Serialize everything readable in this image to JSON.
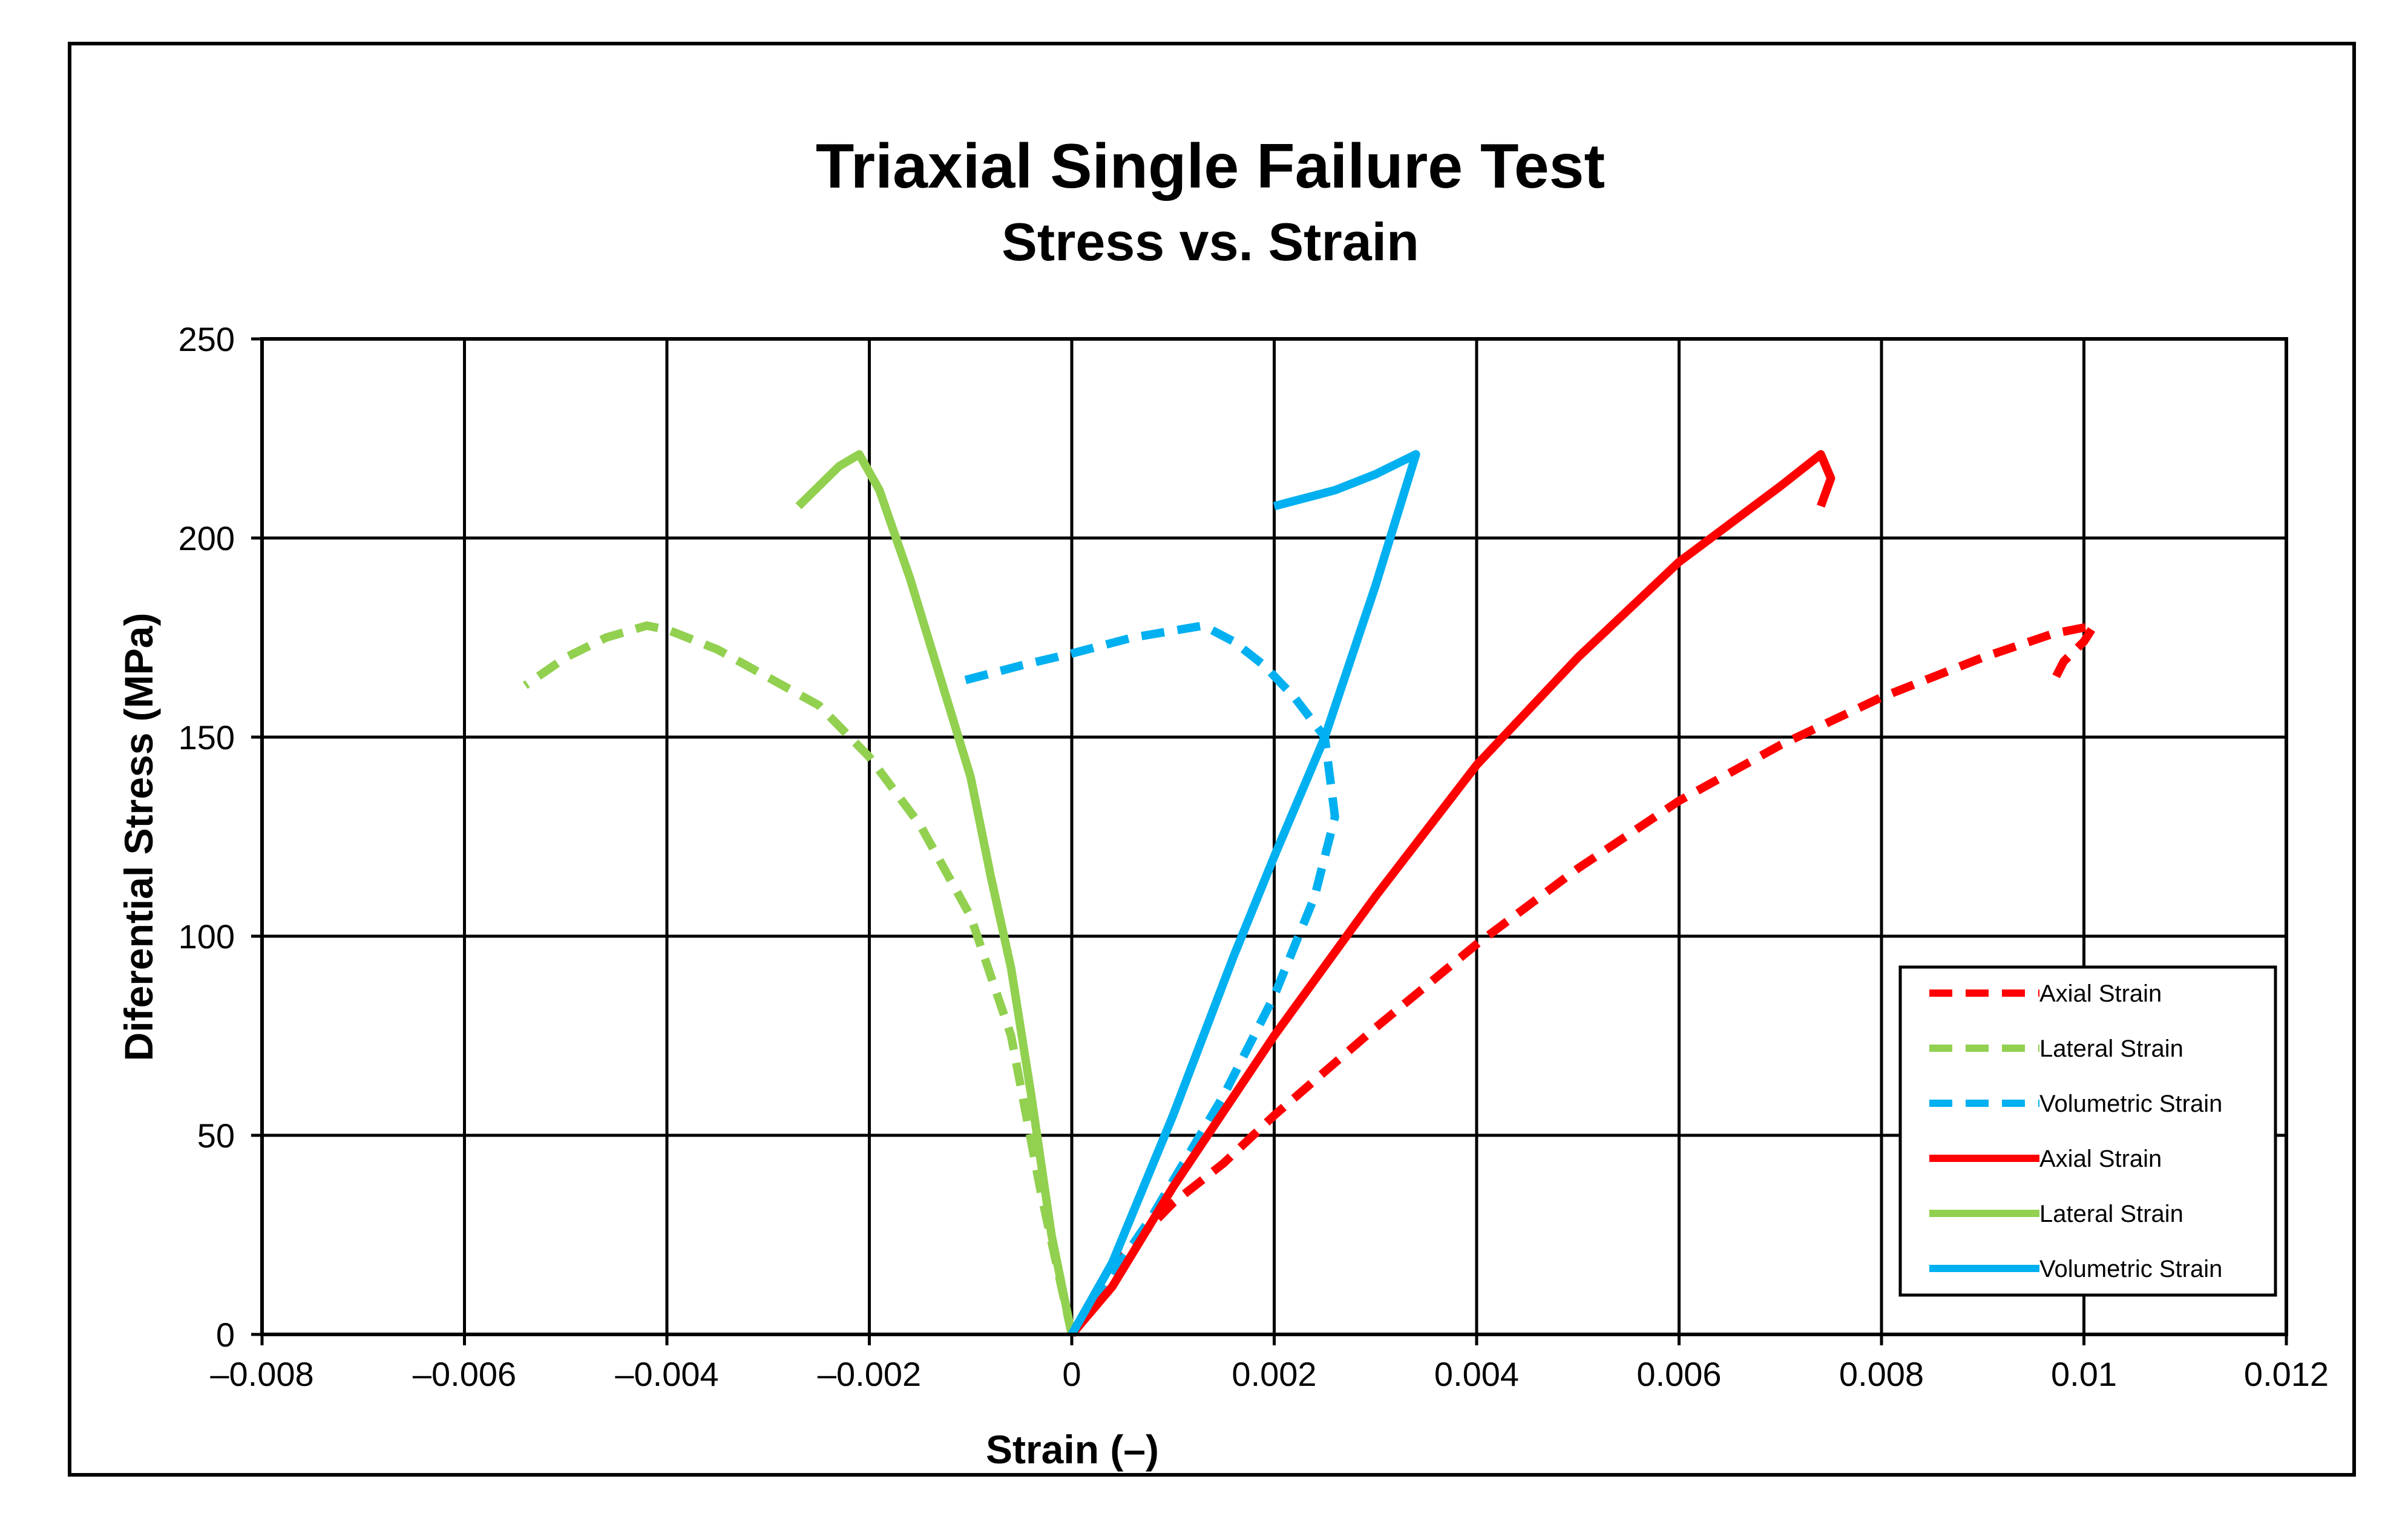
{
  "chart_data": {
    "type": "line",
    "title": "Triaxial Single Failure Test",
    "subtitle": "Stress vs. Strain",
    "xlabel": "Strain (–)",
    "ylabel": "Diferential Stress (MPa)",
    "xlim": [
      -0.008,
      0.012
    ],
    "ylim": [
      0,
      250
    ],
    "x_ticks": [
      -0.008,
      -0.006,
      -0.004,
      -0.002,
      0,
      0.002,
      0.004,
      0.006,
      0.008,
      0.01,
      0.012
    ],
    "x_tick_labels": [
      "–0.008",
      "–0.006",
      "–0.004",
      "–0.002",
      "0",
      "0.002",
      "0.004",
      "0.006",
      "0.008",
      "0.01",
      "0.012"
    ],
    "y_ticks": [
      0,
      50,
      100,
      150,
      200,
      250
    ],
    "y_tick_labels": [
      "0",
      "50",
      "100",
      "150",
      "200",
      "250"
    ],
    "grid": true,
    "legend_position": "bottom-right",
    "series": [
      {
        "name": "Axial Strain",
        "test": "dashed",
        "color": "#ff0000",
        "points": [
          [
            0,
            0
          ],
          [
            0.0005,
            20
          ],
          [
            0.001,
            33
          ],
          [
            0.0015,
            43
          ],
          [
            0.002,
            55
          ],
          [
            0.003,
            77
          ],
          [
            0.004,
            98
          ],
          [
            0.005,
            117
          ],
          [
            0.006,
            134
          ],
          [
            0.007,
            148
          ],
          [
            0.008,
            160
          ],
          [
            0.009,
            170
          ],
          [
            0.0097,
            176
          ],
          [
            0.0101,
            178
          ],
          [
            0.01,
            174
          ],
          [
            0.0098,
            169
          ],
          [
            0.0097,
            164
          ]
        ]
      },
      {
        "name": "Lateral Strain",
        "test": "dashed",
        "color": "#92d050",
        "points": [
          [
            0,
            0
          ],
          [
            -0.0003,
            35
          ],
          [
            -0.0006,
            75
          ],
          [
            -0.001,
            105
          ],
          [
            -0.0015,
            128
          ],
          [
            -0.002,
            145
          ],
          [
            -0.0025,
            158
          ],
          [
            -0.003,
            165
          ],
          [
            -0.0035,
            172
          ],
          [
            -0.004,
            177
          ],
          [
            -0.0042,
            178
          ],
          [
            -0.0046,
            175
          ],
          [
            -0.005,
            170
          ],
          [
            -0.0054,
            163
          ]
        ]
      },
      {
        "name": "Volumetric Strain",
        "test": "dashed",
        "color": "#00b0f0",
        "points": [
          [
            0,
            0
          ],
          [
            0.0008,
            30
          ],
          [
            0.0015,
            60
          ],
          [
            0.002,
            85
          ],
          [
            0.0024,
            110
          ],
          [
            0.0026,
            130
          ],
          [
            0.0025,
            150
          ],
          [
            0.0022,
            160
          ],
          [
            0.0019,
            168
          ],
          [
            0.0016,
            174
          ],
          [
            0.0013,
            178
          ],
          [
            0.0006,
            175
          ],
          [
            0,
            171
          ],
          [
            -0.0005,
            168
          ],
          [
            -0.0011,
            164
          ]
        ]
      },
      {
        "name": "Axial Strain",
        "test": "solid",
        "color": "#ff0000",
        "points": [
          [
            0,
            0
          ],
          [
            0.0004,
            12
          ],
          [
            0.001,
            37
          ],
          [
            0.002,
            75
          ],
          [
            0.003,
            110
          ],
          [
            0.004,
            143
          ],
          [
            0.005,
            170
          ],
          [
            0.006,
            194
          ],
          [
            0.007,
            213
          ],
          [
            0.0074,
            221
          ],
          [
            0.0075,
            215
          ],
          [
            0.0074,
            208
          ]
        ]
      },
      {
        "name": "Lateral Strain",
        "test": "solid",
        "color": "#92d050",
        "points": [
          [
            0,
            0
          ],
          [
            -0.0002,
            25
          ],
          [
            -0.0004,
            60
          ],
          [
            -0.0006,
            92
          ],
          [
            -0.0008,
            115
          ],
          [
            -0.001,
            140
          ],
          [
            -0.0013,
            165
          ],
          [
            -0.0016,
            190
          ],
          [
            -0.0019,
            212
          ],
          [
            -0.0021,
            221
          ],
          [
            -0.0023,
            218
          ],
          [
            -0.0025,
            213
          ],
          [
            -0.0027,
            208
          ]
        ]
      },
      {
        "name": "Volumetric Strain",
        "test": "solid",
        "color": "#00b0f0",
        "points": [
          [
            0,
            0
          ],
          [
            0.0004,
            18
          ],
          [
            0.001,
            55
          ],
          [
            0.0016,
            95
          ],
          [
            0.002,
            120
          ],
          [
            0.0025,
            150
          ],
          [
            0.003,
            188
          ],
          [
            0.0034,
            221
          ],
          [
            0.003,
            216
          ],
          [
            0.0026,
            212
          ],
          [
            0.0023,
            210
          ],
          [
            0.002,
            208
          ]
        ]
      }
    ]
  }
}
